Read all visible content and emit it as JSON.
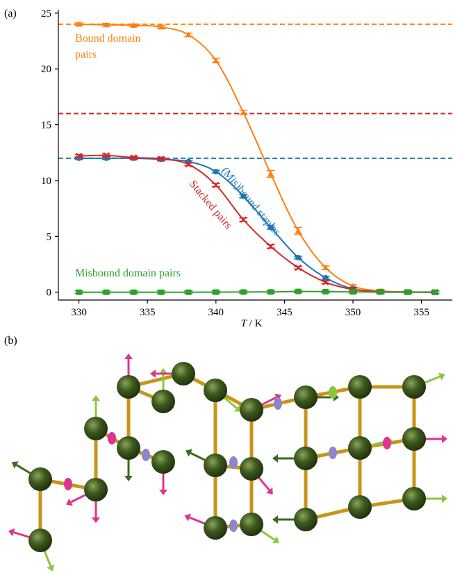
{
  "panel_labels": {
    "a": "(a)",
    "b": "(b)"
  },
  "chart_data": {
    "type": "line",
    "xlabel_italic": "T",
    "xlabel_rest": " / K",
    "ylabel": "",
    "xlim": [
      328.5,
      357.3
    ],
    "ylim": [
      -0.7,
      25.3
    ],
    "xticks": [
      330,
      335,
      340,
      345,
      350,
      355
    ],
    "yticks": [
      0,
      5,
      10,
      15,
      20,
      25
    ],
    "grid": false,
    "x": [
      330,
      332,
      334,
      336,
      338,
      340,
      342,
      344,
      346,
      348,
      350,
      352,
      354,
      356
    ],
    "series": [
      {
        "key": "bound",
        "color": "#ff7f0e",
        "marker": "triangle",
        "values": [
          24.0,
          23.95,
          23.9,
          23.75,
          23.05,
          20.75,
          16.1,
          10.6,
          5.5,
          2.2,
          0.55,
          0.12,
          0.03,
          0.0
        ],
        "error": [
          0.12,
          0.12,
          0.12,
          0.15,
          0.15,
          0.2,
          0.2,
          0.3,
          0.3,
          0.15,
          0.1,
          0.05,
          0.03,
          0.02
        ]
      },
      {
        "key": "misbound_staples",
        "color": "#1f77b4",
        "marker": "circle",
        "values": [
          12.0,
          12.0,
          12.0,
          11.9,
          11.7,
          10.8,
          8.6,
          5.8,
          3.1,
          1.3,
          0.3,
          0.05,
          0.02,
          0.0
        ],
        "error": [
          0.08,
          0.08,
          0.08,
          0.08,
          0.1,
          0.12,
          0.15,
          0.15,
          0.12,
          0.1,
          0.06,
          0.03,
          0.02,
          0.01
        ]
      },
      {
        "key": "stacked",
        "color": "#d62728",
        "marker": "x",
        "values": [
          12.2,
          12.25,
          12.05,
          11.95,
          11.45,
          9.6,
          6.5,
          4.1,
          2.2,
          0.9,
          0.25,
          0.04,
          0.01,
          0.0
        ],
        "error": [
          0.1,
          0.1,
          0.1,
          0.1,
          0.12,
          0.15,
          0.15,
          0.15,
          0.1,
          0.08,
          0.05,
          0.03,
          0.01,
          0.01
        ]
      },
      {
        "key": "misbound_domain",
        "color": "#2ca02c",
        "marker": "square",
        "values": [
          0.0,
          0.0,
          0.0,
          0.0,
          0.0,
          0.01,
          0.02,
          0.03,
          0.07,
          0.05,
          0.03,
          0.01,
          0.0,
          0.0
        ],
        "error": [
          0.01,
          0.01,
          0.01,
          0.01,
          0.01,
          0.01,
          0.01,
          0.02,
          0.02,
          0.02,
          0.02,
          0.01,
          0.01,
          0.01
        ]
      }
    ],
    "reference_lines": [
      {
        "y": 24,
        "color": "#ff7f0e"
      },
      {
        "y": 16,
        "color": "#d62728"
      },
      {
        "y": 12,
        "color": "#1f77b4"
      }
    ],
    "annotations": {
      "bound_line1": "Bound domain",
      "bound_line2": "pairs",
      "misbound_staples": "(Mis)bound staples",
      "stacked": "Stacked pairs",
      "misbound_domain": "Misbound domain pairs"
    }
  },
  "diagram_b": {
    "colors": {
      "sphere": "#3e5a1e",
      "sphere_light": "#8aa45a",
      "bond": "#c8951a",
      "pink": "#e0338f",
      "lime": "#8cc63f",
      "lavender": "#8f86c9",
      "dark_green": "#3a6b1e"
    }
  }
}
